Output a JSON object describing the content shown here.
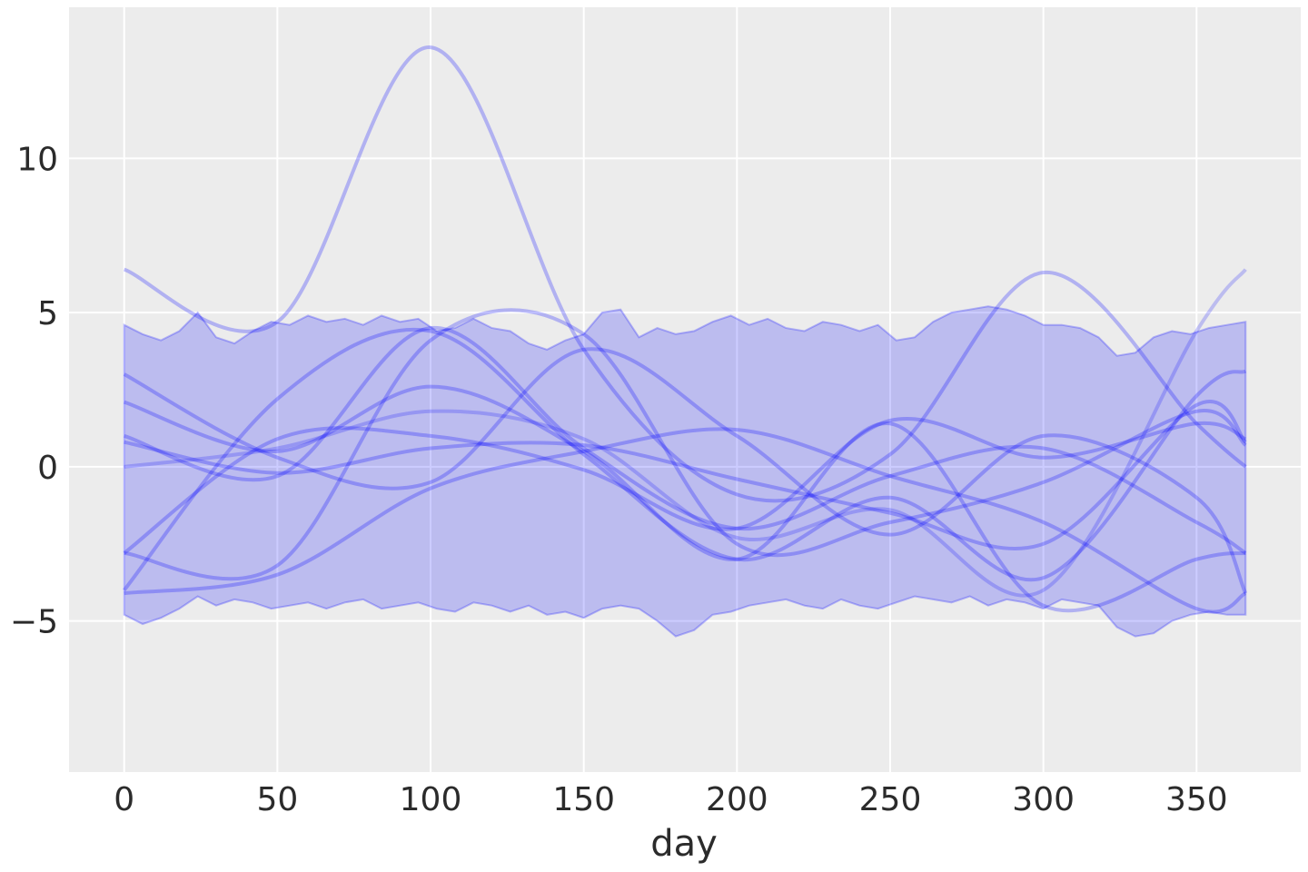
{
  "chart_data": {
    "type": "line",
    "title": "",
    "xlabel": "day",
    "ylabel": "",
    "xlim": [
      -18,
      384
    ],
    "ylim": [
      -9.9,
      14.9
    ],
    "xticks": [
      0,
      50,
      100,
      150,
      200,
      250,
      300,
      350
    ],
    "yticks": [
      -5,
      0,
      5,
      10
    ],
    "xtick_labels": [
      "0",
      "50",
      "100",
      "150",
      "200",
      "250",
      "300",
      "350"
    ],
    "ytick_labels": [
      "−5",
      "0",
      "5",
      "10"
    ],
    "grid": true,
    "legend": "none",
    "background": "#ececec",
    "grid_color": "#ffffff",
    "band_color": "#0000ff",
    "line_color": "#0000ff",
    "band": {
      "description_of_values": "shaded interval across all days",
      "x": [
        0,
        6,
        12,
        18,
        24,
        30,
        36,
        42,
        48,
        54,
        60,
        66,
        72,
        78,
        84,
        90,
        96,
        102,
        108,
        114,
        120,
        126,
        132,
        138,
        144,
        150,
        156,
        162,
        168,
        174,
        180,
        186,
        192,
        198,
        204,
        210,
        216,
        222,
        228,
        234,
        240,
        246,
        252,
        258,
        264,
        270,
        276,
        282,
        288,
        294,
        300,
        306,
        312,
        318,
        324,
        330,
        336,
        342,
        348,
        354,
        360,
        366
      ],
      "upper": [
        4.6,
        4.3,
        4.1,
        4.4,
        5.0,
        4.2,
        4.0,
        4.4,
        4.7,
        4.6,
        4.9,
        4.7,
        4.8,
        4.6,
        4.9,
        4.7,
        4.8,
        4.4,
        4.5,
        4.8,
        4.5,
        4.4,
        4.0,
        3.8,
        4.1,
        4.3,
        5.0,
        5.1,
        4.2,
        4.5,
        4.3,
        4.4,
        4.7,
        4.9,
        4.6,
        4.8,
        4.5,
        4.4,
        4.7,
        4.6,
        4.4,
        4.6,
        4.1,
        4.2,
        4.7,
        5.0,
        5.1,
        5.2,
        5.1,
        4.9,
        4.6,
        4.6,
        4.5,
        4.2,
        3.6,
        3.7,
        4.2,
        4.4,
        4.3,
        4.5,
        4.6,
        4.7
      ],
      "lower": [
        -4.8,
        -5.1,
        -4.9,
        -4.6,
        -4.2,
        -4.5,
        -4.3,
        -4.4,
        -4.6,
        -4.5,
        -4.4,
        -4.6,
        -4.4,
        -4.3,
        -4.6,
        -4.5,
        -4.4,
        -4.6,
        -4.7,
        -4.4,
        -4.5,
        -4.7,
        -4.5,
        -4.8,
        -4.7,
        -4.9,
        -4.6,
        -4.5,
        -4.6,
        -5.0,
        -5.5,
        -5.3,
        -4.8,
        -4.7,
        -4.5,
        -4.4,
        -4.3,
        -4.5,
        -4.6,
        -4.3,
        -4.5,
        -4.6,
        -4.4,
        -4.2,
        -4.3,
        -4.4,
        -4.2,
        -4.5,
        -4.3,
        -4.4,
        -4.6,
        -4.3,
        -4.4,
        -4.5,
        -5.2,
        -5.5,
        -5.4,
        -5.0,
        -4.8,
        -4.7,
        -4.8,
        -4.8
      ]
    },
    "series": [
      {
        "x": [
          0,
          50,
          100,
          150,
          200,
          250,
          300,
          350,
          366
        ],
        "values": [
          6.4,
          4.7,
          13.6,
          3.8,
          -0.9,
          0.4,
          6.3,
          1.4,
          0.0
        ],
        "opacity": 0.25
      },
      {
        "x": [
          0,
          50,
          100,
          150,
          200,
          250,
          300,
          350,
          366
        ],
        "values": [
          0.0,
          0.6,
          1.8,
          0.9,
          -2.3,
          -1.4,
          -4.0,
          4.4,
          6.4
        ],
        "opacity": 0.2
      },
      {
        "x": [
          0,
          50,
          100,
          150,
          200,
          250,
          300,
          350,
          366
        ],
        "values": [
          -2.8,
          -3.2,
          4.1,
          4.3,
          -2.5,
          -1.8,
          -0.5,
          1.8,
          0.7
        ],
        "opacity": 0.25
      },
      {
        "x": [
          0,
          50,
          100,
          150,
          200,
          250,
          300,
          350,
          366
        ],
        "values": [
          -4.0,
          2.2,
          4.4,
          0.4,
          -3.0,
          -1.0,
          -3.6,
          2.3,
          3.1
        ],
        "opacity": 0.25
      },
      {
        "x": [
          0,
          50,
          100,
          150,
          200,
          250,
          300,
          350,
          366
        ],
        "values": [
          2.1,
          0.5,
          2.6,
          0.5,
          -3.0,
          1.4,
          -4.5,
          -3.0,
          -2.8
        ],
        "opacity": 0.25
      },
      {
        "x": [
          0,
          50,
          100,
          150,
          200,
          250,
          300,
          350,
          366
        ],
        "values": [
          3.0,
          0.3,
          -0.5,
          3.8,
          1.0,
          -2.2,
          1.0,
          -1.0,
          -4.1
        ],
        "opacity": 0.25
      },
      {
        "x": [
          0,
          50,
          100,
          150,
          200,
          250,
          300,
          350,
          366
        ],
        "values": [
          1.0,
          -0.3,
          4.5,
          0.6,
          -2.0,
          -0.3,
          0.6,
          -1.8,
          -2.8
        ],
        "opacity": 0.25
      },
      {
        "x": [
          0,
          50,
          100,
          150,
          200,
          250,
          300,
          350,
          366
        ],
        "values": [
          0.8,
          -0.2,
          0.6,
          0.7,
          -0.4,
          -1.5,
          -2.5,
          2.0,
          0.8
        ],
        "opacity": 0.25
      },
      {
        "x": [
          0,
          50,
          100,
          150,
          200,
          250,
          300,
          350,
          366
        ],
        "values": [
          -4.1,
          -3.5,
          -0.7,
          0.5,
          1.2,
          -0.3,
          -1.8,
          -4.6,
          -4.1
        ],
        "opacity": 0.25
      },
      {
        "x": [
          0,
          50,
          100,
          150,
          200,
          250,
          300,
          350,
          366
        ],
        "values": [
          -2.8,
          0.9,
          1.0,
          -0.1,
          -2.0,
          1.5,
          0.3,
          1.4,
          0.9
        ],
        "opacity": 0.25
      }
    ]
  }
}
